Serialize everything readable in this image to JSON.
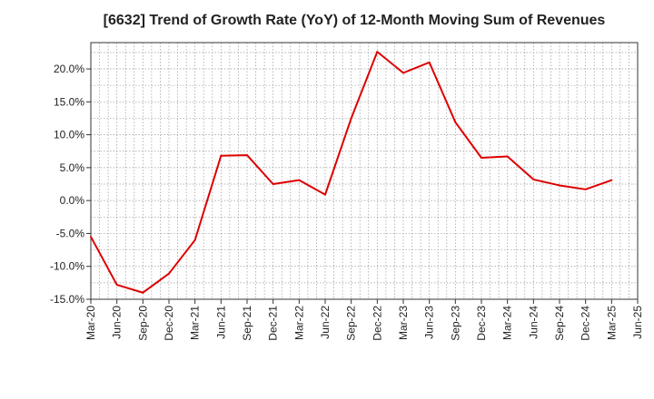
{
  "chart_data": {
    "type": "line",
    "title": "[6632]  Trend of Growth Rate (YoY) of 12-Month Moving Sum of Revenues",
    "xlabel": "",
    "ylabel": "",
    "ylim": [
      -15,
      24
    ],
    "yticks": [
      -15,
      -10,
      -5,
      0,
      5,
      10,
      15,
      20
    ],
    "y_tick_labels": [
      "-15.0%",
      "-10.0%",
      "-5.0%",
      "0.0%",
      "5.0%",
      "10.0%",
      "15.0%",
      "20.0%"
    ],
    "x_tick_labels": [
      "Mar-20",
      "Jun-20",
      "Sep-20",
      "Dec-20",
      "Mar-21",
      "Jun-21",
      "Sep-21",
      "Dec-21",
      "Mar-22",
      "Jun-22",
      "Sep-22",
      "Dec-22",
      "Mar-23",
      "Jun-23",
      "Sep-23",
      "Dec-23",
      "Mar-24",
      "Jun-24",
      "Sep-24",
      "Dec-24",
      "Mar-25",
      "Jun-25"
    ],
    "grid": true,
    "line_color": "#dd0000",
    "series": [
      {
        "values": [
          -5.5,
          -12.8,
          -14.0,
          -11.1,
          -6.0,
          6.8,
          6.9,
          2.5,
          3.1,
          0.9,
          12.5,
          22.6,
          19.4,
          21.0,
          11.9,
          6.5,
          6.7,
          3.2,
          2.3,
          1.7,
          3.1
        ]
      }
    ]
  }
}
